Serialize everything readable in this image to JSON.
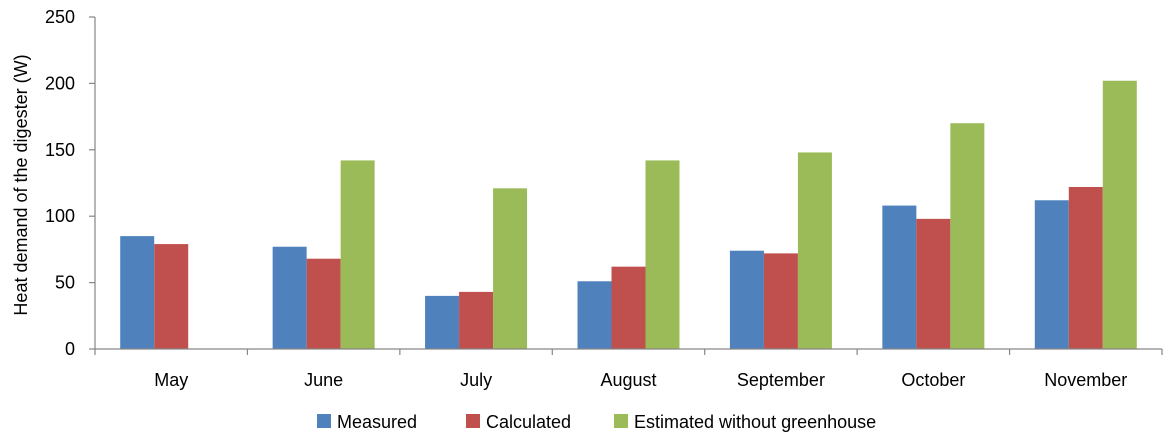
{
  "chart_data": {
    "type": "bar",
    "title": "",
    "xlabel": "",
    "ylabel": "Heat demand of the digester (W)",
    "ylim": [
      0,
      250
    ],
    "yticks": [
      "0",
      "50",
      "100",
      "150",
      "200",
      "250"
    ],
    "grid": false,
    "legend_position": "bottom",
    "categories": [
      "May",
      "June",
      "July",
      "August",
      "September",
      "October",
      "November"
    ],
    "series": [
      {
        "name": "Measured",
        "color": "#4F81BD",
        "values": [
          85,
          77,
          40,
          51,
          74,
          108,
          112
        ]
      },
      {
        "name": "Calculated",
        "color": "#C0504D",
        "values": [
          79,
          68,
          43,
          62,
          72,
          98,
          122
        ]
      },
      {
        "name": "Estimated without greenhouse",
        "color": "#9BBB59",
        "values": [
          null,
          142,
          121,
          142,
          148,
          170,
          202
        ]
      }
    ]
  }
}
